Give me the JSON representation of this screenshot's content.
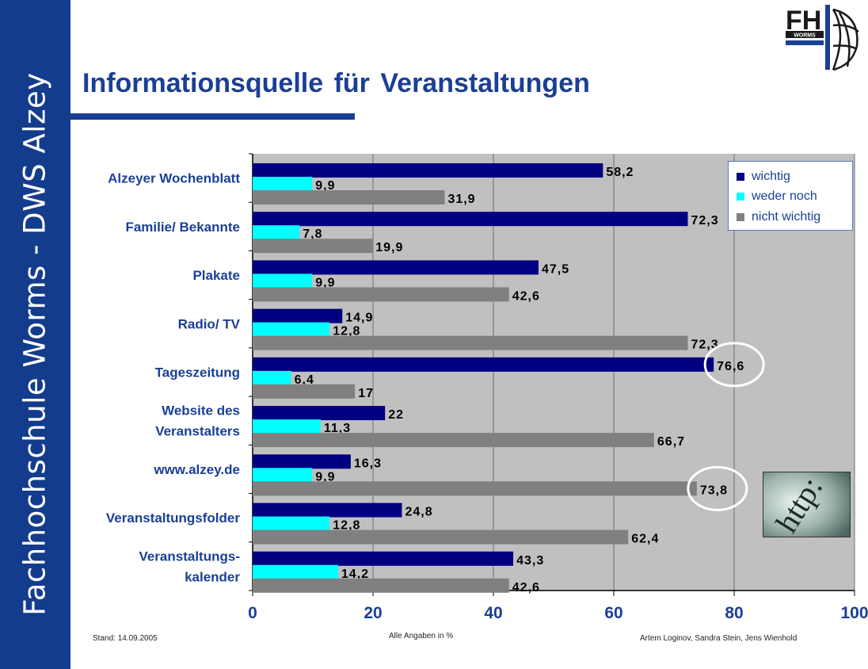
{
  "sidebar": {
    "institution": "Fachhochschule Worms - DWS Alzey"
  },
  "header": {
    "title": "Informationsquelle für Veranstaltungen"
  },
  "logo": {
    "text": "FH",
    "subtext": "WORMS"
  },
  "footer": {
    "date": "Stand: 14.09.2005",
    "unit_note": "Alle Angaben in %",
    "authors": "Artem Loginov, Sandra Stein, Jens Wienhold"
  },
  "image": {
    "text": "http:"
  },
  "colors": {
    "wichtig": "#000080",
    "weder_noch": "#00ffff",
    "nicht_wichtig": "#808080",
    "plot_bg": "#c0c0c0",
    "accent": "#1a3f95"
  },
  "chart_data": {
    "type": "bar",
    "orientation": "horizontal",
    "categories": [
      [
        "Alzeyer Wochenblatt"
      ],
      [
        "Familie/ Bekannte"
      ],
      [
        "Plakate"
      ],
      [
        "Radio/ TV"
      ],
      [
        "Tageszeitung"
      ],
      [
        "Website des",
        "Veranstalters"
      ],
      [
        "www.alzey.de"
      ],
      [
        "Veranstaltungsfolder"
      ],
      [
        "Veranstaltungs-",
        "kalender"
      ]
    ],
    "series": [
      {
        "name": "wichtig",
        "values": [
          58.2,
          72.3,
          47.5,
          14.9,
          76.6,
          22,
          16.3,
          24.8,
          43.3
        ],
        "labels": [
          "58,2",
          "72,3",
          "47,5",
          "14,9",
          "76,6",
          "22",
          "16,3",
          "24,8",
          "43,3"
        ]
      },
      {
        "name": "weder noch",
        "values": [
          9.9,
          7.8,
          9.9,
          12.8,
          6.4,
          11.3,
          9.9,
          12.8,
          14.2
        ],
        "labels": [
          "9,9",
          "7,8",
          "9,9",
          "12,8",
          "6,4",
          "11,3",
          "9,9",
          "12,8",
          "14,2"
        ]
      },
      {
        "name": "nicht wichtig",
        "values": [
          31.9,
          19.9,
          42.6,
          72.3,
          17,
          66.7,
          73.8,
          62.4,
          42.6
        ],
        "labels": [
          "31,9",
          "19,9",
          "42,6",
          "72,3",
          "17",
          "66,7",
          "73,8",
          "62,4",
          "42,6"
        ]
      }
    ],
    "xlim": [
      0,
      100
    ],
    "xticks": [
      0,
      20,
      40,
      60,
      80,
      100
    ],
    "grid": true,
    "legend": "top-right",
    "highlights": [
      {
        "category_index": 4,
        "series_index": 0
      },
      {
        "category_index": 6,
        "series_index": 2
      }
    ]
  }
}
